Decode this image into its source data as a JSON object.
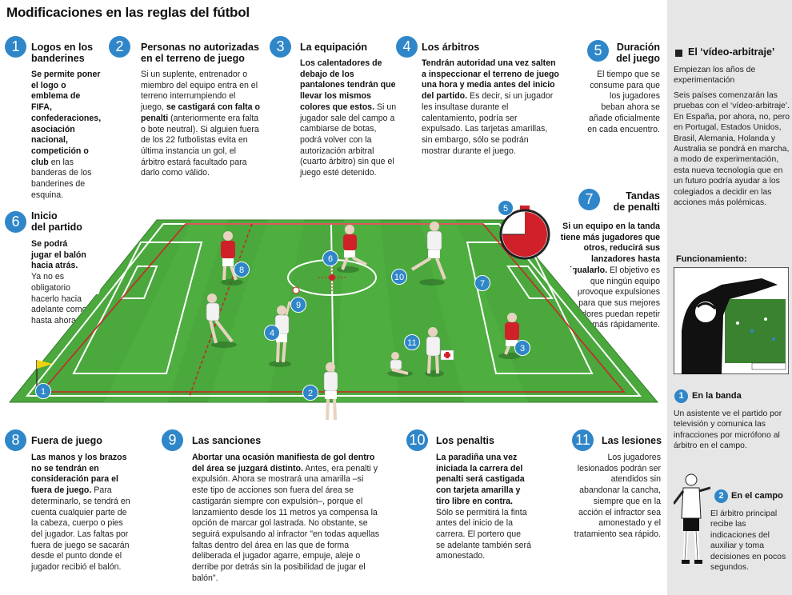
{
  "title": "Modificaciones en las reglas del fútbol",
  "sections": {
    "s1": {
      "num": "1",
      "title_a": "Logos en los",
      "title_b": "banderines",
      "bold": "Se permite poner el logo o emblema de FIFA, confederaciones, asociación nacional, competición o club",
      "text": " en las banderas de los banderines de esquina."
    },
    "s2": {
      "num": "2",
      "title_a": "Personas no autorizadas",
      "title_b": "en el terreno de juego",
      "text_a": "Si un suplente, entrenador o miembro del equipo entra en el terreno interrumpiendo el juego, ",
      "bold": "se castigará con falta o penalti",
      "text_b": " (anteriormente era falta o bote neutral). Si alguien fuera de los 22 futbolistas evita en última instancia un gol, el árbitro estará facultado para darlo como válido."
    },
    "s3": {
      "num": "3",
      "title": "La equipación",
      "bold": "Los calentadores de debajo de los pantalones tendrán que llevar los mismos colores que estos.",
      "text": " Si un jugador sale del campo a cambiarse de botas, podrá volver con la autorización arbitral (cuarto árbitro) sin que el juego esté detenido."
    },
    "s4": {
      "num": "4",
      "title": "Los árbitros",
      "bold": "Tendrán autoridad una vez salten a inspeccionar el terreno de juego una hora y media antes del inicio del partido.",
      "text": " Es decir, si un jugador les insultase durante el calentamiento, podría ser expulsado. Las tarjetas amarillas, sin embargo, sólo se podrán mostrar durante el juego."
    },
    "s5": {
      "num": "5",
      "title_a": "Duración",
      "title_b": "del juego",
      "text": "El tiempo que se consume para que los jugadores beban ahora se añade oficialmente en cada encuentro."
    },
    "s6": {
      "num": "6",
      "title_a": "Inicio",
      "title_b": "del partido",
      "bold": "Se podrá jugar el balón hacia atrás.",
      "text": " Ya no es obligatorio hacerlo hacia adelante como hasta ahora."
    },
    "s7": {
      "num": "7",
      "title_a": "Tandas",
      "title_b": "de penalti",
      "bold": "Si un equipo en la tanda tiene más jugadores que otros, reducirá sus lanzadores hasta igualarlo.",
      "text": " El objetivo es que ningún equipo provoque expulsiones para que sus mejores lanzadores puedan repetir más rápidamente."
    },
    "s8": {
      "num": "8",
      "title": "Fuera de juego",
      "bold": "Las manos y los brazos no se tendrán en consideración para el fuera de juego.",
      "text": " Para determinarlo, se tendrá en cuenta cualquier parte de la cabeza, cuerpo o pies del jugador. Las faltas por fuera de juego se sacarán desde el punto donde el jugador recibió el balón."
    },
    "s9": {
      "num": "9",
      "title": "Las sanciones",
      "bold": "Abortar una ocasión manifiesta de gol dentro del área se juzgará distinto.",
      "text": " Antes, era penalti y expulsión. Ahora se mostrará una amarilla –si este tipo de acciones son fuera del área se castigarán siempre con expulsión–, porque el lanzamiento desde los 11 metros ya compensa la opción de marcar gol lastrada. No obstante, se seguirá expulsando al infractor \"en todas aquellas faltas dentro del área en las que de forma deliberada el jugador agarre, empuje, aleje o derribe por detrás sin la posibilidad de jugar el balón\"."
    },
    "s10": {
      "num": "10",
      "title": "Los penaltis",
      "bold": "La paradiña una vez iniciada la carrera del penalti será castigada con tarjeta amarilla y tiro libre en contra.",
      "text": " Sólo se permitirá la finta antes del inicio de la carrera. El portero que se adelante también será amonestado."
    },
    "s11": {
      "num": "11",
      "title": "Las lesiones",
      "text": "Los jugadores lesionados podrán ser atendidos sin abandonar la cancha, siempre que en la acción el infractor sea amonestado y el tratamiento sea rápido."
    }
  },
  "sidebar": {
    "heading": "El ‘vídeo-arbitraje’",
    "subheading": "Empiezan los años de experimentación",
    "text": "Seis países comenzarán las pruebas con el ‘vídeo-arbitraje’. En España, por ahora, no, pero en Portugal, Estados Unidos, Brasil, Alemania, Holanda y Australia se pondrá en marcha, a modo de experimentación, esta nueva tecnología que en un futuro podría ayudar a los colegiados a decidir en las acciones más polémicas.",
    "funcionamiento": "Funcionamiento:",
    "step1": {
      "num": "1",
      "title": "En la banda",
      "text": "Un asistente ve el partido por televisión y comunica las infracciones por micrófono al árbitro en el campo."
    },
    "step2": {
      "num": "2",
      "title": "En el campo",
      "text": "El árbitro principal recibe las indicaciones del auxiliar y toma decisiones en pocos segundos."
    }
  },
  "field_markers": [
    "1",
    "2",
    "3",
    "4",
    "5",
    "6",
    "7",
    "8",
    "9",
    "10",
    "11"
  ],
  "colors": {
    "accent": "#2f86c8",
    "field": "#4aa83c",
    "red": "#d0202a",
    "sidebar": "#e6e6e6"
  }
}
